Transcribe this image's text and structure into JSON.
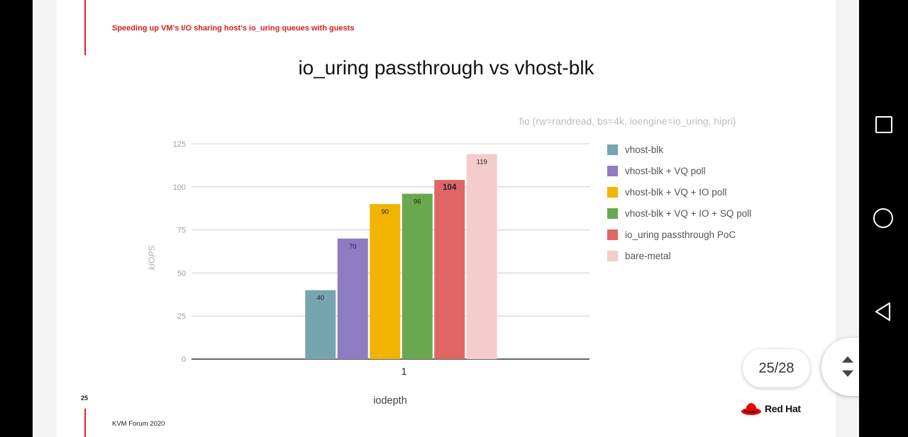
{
  "slide": {
    "kicker": "Speeding up VM’s I/O sharing host’s io_uring queues with guests",
    "number": "25",
    "footer": "KVM Forum 2020",
    "logo_text": "Red Hat"
  },
  "pager": {
    "label": "25/28"
  },
  "colors": {
    "accent": "#d41f1f"
  },
  "icons": {
    "nav_recents": "square-icon",
    "nav_home": "circle-icon",
    "nav_back": "back-triangle-icon",
    "scroll": "scroll-arrows-icon"
  },
  "chart_data": {
    "type": "bar",
    "title": "io_uring passthrough vs vhost-blk",
    "subtitle": "fio (rw=randread, bs=4k, ioengine=io_uring, hipri)",
    "xlabel": "iodepth",
    "ylabel": "kIOPS",
    "categories": [
      "1"
    ],
    "ylim": [
      0,
      125
    ],
    "yticks": [
      0,
      25,
      50,
      75,
      100,
      125
    ],
    "grid": true,
    "legend": "right",
    "series": [
      {
        "name": "vhost-blk",
        "values": [
          40
        ],
        "color": "#76a5af",
        "label": "40"
      },
      {
        "name": "vhost-blk + VQ poll",
        "values": [
          70
        ],
        "color": "#8e7cc3",
        "label": "70"
      },
      {
        "name": "vhost-blk + VQ + IO poll",
        "values": [
          90
        ],
        "color": "#f1b400",
        "label": "90"
      },
      {
        "name": "vhost-blk + VQ + IO + SQ poll",
        "values": [
          96
        ],
        "color": "#6aa84f",
        "label": "96"
      },
      {
        "name": "io_uring passthrough PoC",
        "values": [
          104
        ],
        "color": "#e06666",
        "label": "104"
      },
      {
        "name": "bare-metal",
        "values": [
          119
        ],
        "color": "#f4cccc",
        "label": "119"
      }
    ]
  }
}
